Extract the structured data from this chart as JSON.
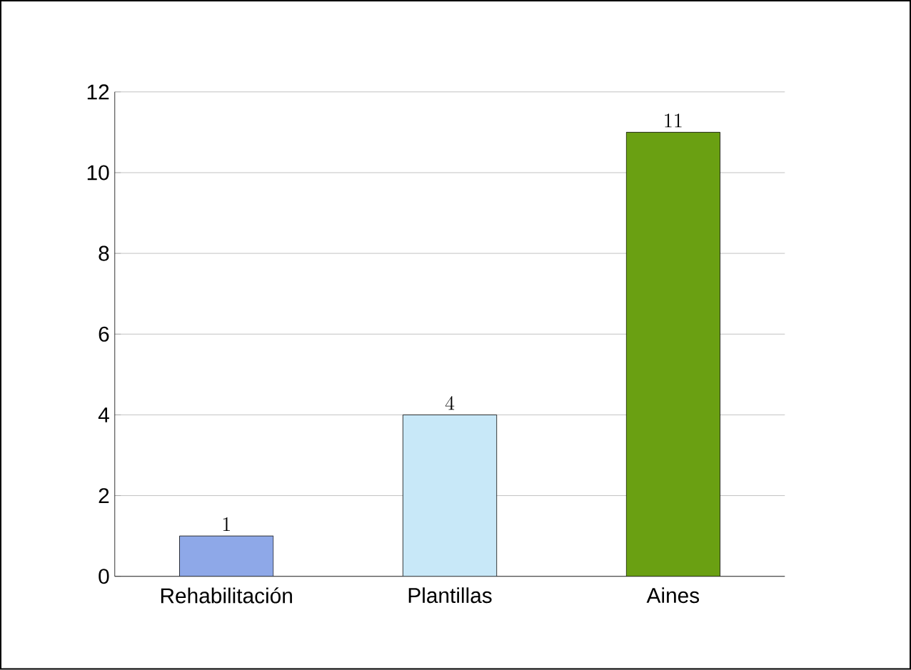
{
  "chart_data": {
    "type": "bar",
    "categories": [
      "Rehabilitación",
      "Plantillas",
      "Aines"
    ],
    "values": [
      1,
      4,
      11
    ],
    "colors": [
      "#8ea8e8",
      "#c8e8f8",
      "#6aa012"
    ],
    "ylim": [
      0,
      12
    ],
    "yticks": [
      0,
      2,
      4,
      6,
      8,
      10,
      12
    ],
    "grid": "y",
    "data_labels": true
  }
}
